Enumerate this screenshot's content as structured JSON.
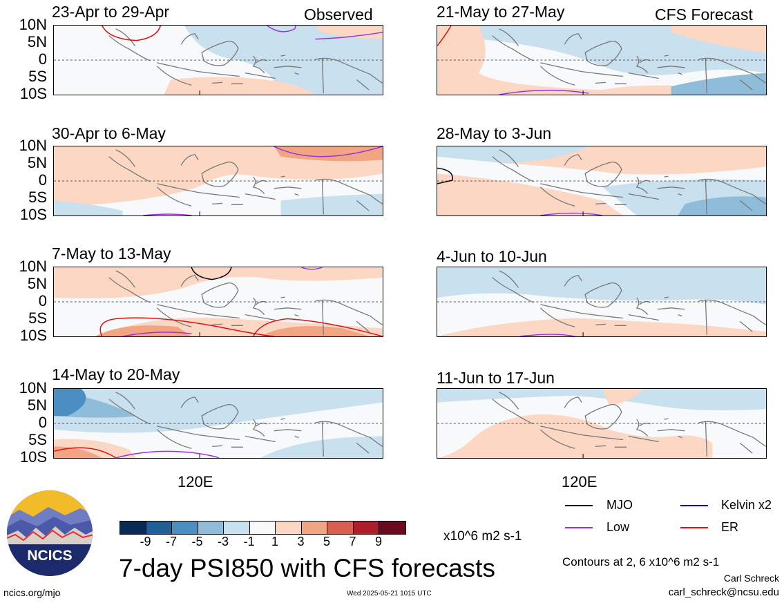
{
  "header": {
    "left_label": "Observed",
    "right_label": "CFS Forecast"
  },
  "observed_panels": [
    {
      "title": "23-Apr to 29-Apr"
    },
    {
      "title": "30-Apr to 6-May"
    },
    {
      "title": "7-May to 13-May"
    },
    {
      "title": "14-May to 20-May"
    }
  ],
  "forecast_panels": [
    {
      "title": "21-May to 27-May"
    },
    {
      "title": "28-May to 3-Jun"
    },
    {
      "title": "4-Jun to 10-Jun"
    },
    {
      "title": "11-Jun to 17-Jun"
    }
  ],
  "lat_labels": [
    "10N",
    "5N",
    "0",
    "5S",
    "10S"
  ],
  "lon_label": "120E",
  "legend": {
    "mjo": "MJO",
    "kelvin": "Kelvin x2",
    "low": "Low",
    "er": "ER",
    "mjo_color": "#000000",
    "kelvin_color": "#0000cc",
    "low_color": "#9b30e0",
    "er_color": "#e01010"
  },
  "colorbar": {
    "ticks": [
      "-9",
      "-7",
      "-5",
      "-3",
      "-1",
      "1",
      "3",
      "5",
      "7",
      "9"
    ],
    "colors": [
      "#0a2a55",
      "#1f5f95",
      "#4b8fc2",
      "#8fbcd9",
      "#c9e0ee",
      "#f7f9fa",
      "#fbd7c4",
      "#f2a583",
      "#d9604e",
      "#b01e2c",
      "#6b0a1e"
    ],
    "unit": "x10^6 m2 s-1"
  },
  "title": "7-day PSI850 with CFS forecasts",
  "contour_note": "Contours at 2, 6 x10^6 m2 s-1",
  "author": "Carl Schreck",
  "email": "carl_schreck@ncsu.edu",
  "website": "ncics.org/mjo",
  "timestamp": "Wed 2025-05-21 1015 UTC",
  "logo_text": "NCICS"
}
